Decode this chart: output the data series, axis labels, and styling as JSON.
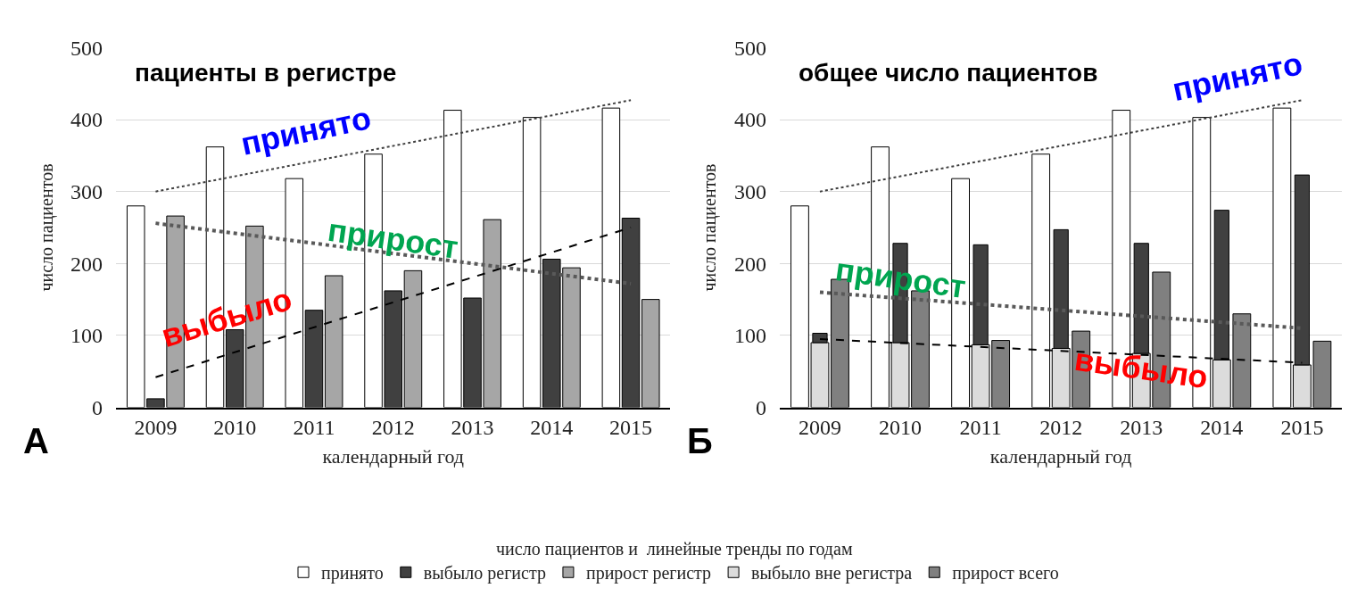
{
  "chart_data": [
    {
      "type": "bar",
      "title": "пациенты в регистре",
      "xlabel": "календарный год",
      "ylabel": "число пациентов",
      "categories": [
        "2009",
        "2010",
        "2011",
        "2012",
        "2013",
        "2014",
        "2015"
      ],
      "ylim": [
        0,
        500
      ],
      "yticks": [
        0,
        100,
        200,
        300,
        400,
        500
      ],
      "grid": "y",
      "legend": "bottom",
      "legend_title": "число пациентов и  линейные тренды по годам",
      "series": [
        {
          "name": "принято",
          "color": "#ffffff",
          "values": [
            280,
            362,
            318,
            352,
            413,
            403,
            416
          ]
        },
        {
          "name": "выбыло регистр",
          "color": "#404040",
          "values": [
            12,
            108,
            135,
            162,
            152,
            206,
            263
          ]
        },
        {
          "name": "прирост регистр",
          "color": "#a6a6a6",
          "values": [
            266,
            252,
            183,
            190,
            261,
            194,
            150
          ]
        },
        {
          "type": "line",
          "color": "#404040",
          "line_style": "dotted",
          "values": [
            300,
            null,
            null,
            null,
            null,
            null,
            427
          ]
        },
        {
          "type": "line",
          "color": "#000000",
          "line_style": "dashed",
          "values": [
            42,
            null,
            null,
            null,
            null,
            null,
            250
          ]
        },
        {
          "type": "line",
          "color": "#595959",
          "line_style": "dotted",
          "values": [
            256,
            null,
            null,
            null,
            null,
            null,
            172
          ]
        }
      ],
      "annotations": [
        "принято",
        "прирост",
        "выбыло",
        "А"
      ]
    },
    {
      "type": "bar",
      "title": "общее число пациентов",
      "xlabel": "календарный год",
      "ylabel": "число пациентов",
      "categories": [
        "2009",
        "2010",
        "2011",
        "2012",
        "2013",
        "2014",
        "2015"
      ],
      "ylim": [
        0,
        500
      ],
      "yticks": [
        0,
        100,
        200,
        300,
        400,
        500
      ],
      "grid": "y",
      "legend": "bottom",
      "series": [
        {
          "color": "#ffffff",
          "values": [
            280,
            362,
            318,
            352,
            413,
            403,
            416
          ]
        },
        {
          "name": "выбыло вне регистра",
          "color": "#dcdcdc",
          "values": [
            90,
            90,
            87,
            82,
            75,
            66,
            59
          ]
        },
        {
          "color": "#404040",
          "values": [
            13,
            138,
            139,
            165,
            153,
            208,
            264
          ],
          "base": [
            90,
            90,
            87,
            82,
            75,
            66,
            59
          ]
        },
        {
          "name": "прирост всего",
          "color": "#808080",
          "values": [
            178,
            162,
            93,
            106,
            188,
            130,
            92
          ]
        },
        {
          "type": "line",
          "color": "#404040",
          "line_style": "dotted",
          "values": [
            300,
            null,
            null,
            null,
            null,
            null,
            427
          ]
        },
        {
          "type": "line",
          "color": "#595959",
          "line_style": "dotted",
          "values": [
            160,
            null,
            null,
            null,
            null,
            null,
            110
          ]
        },
        {
          "type": "line",
          "color": "#000000",
          "line_style": "dashed",
          "values": [
            95,
            null,
            null,
            null,
            null,
            null,
            62
          ]
        }
      ],
      "annotations": [
        "принято",
        "прирост",
        "выбыло",
        "Б"
      ]
    }
  ]
}
